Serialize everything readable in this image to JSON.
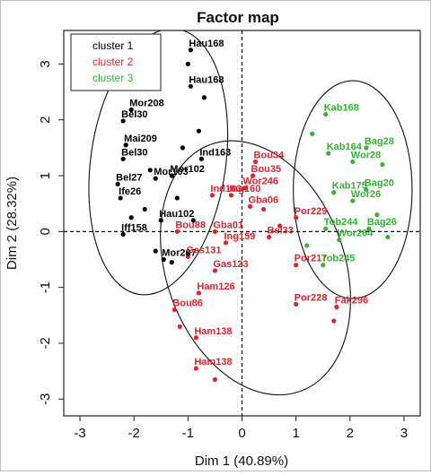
{
  "chart_data": {
    "type": "scatter",
    "title": "Factor map",
    "xlabel": "Dim 1 (40.89%)",
    "ylabel": "Dim 2 (28.32%)",
    "xlim": [
      -3.3,
      3.3
    ],
    "ylim": [
      -3.3,
      3.6
    ],
    "x_ticks": [
      -3,
      -2,
      -1,
      0,
      1,
      2,
      3
    ],
    "y_ticks": [
      -3,
      -2,
      -1,
      0,
      1,
      2,
      3
    ],
    "grid": false,
    "reference_lines": {
      "x": 0,
      "y": 0,
      "style": "dashed"
    },
    "legend": {
      "position": "top-left",
      "entries": [
        "cluster 1",
        "cluster 2",
        "cluster 3"
      ]
    },
    "series": [
      {
        "name": "cluster 1",
        "color": "#000000",
        "points": [
          {
            "x": -0.95,
            "y": 3.25,
            "label": "Hau168"
          },
          {
            "x": -0.95,
            "y": 2.6,
            "label": "Hau168"
          },
          {
            "x": -1.0,
            "y": 3.0
          },
          {
            "x": -0.7,
            "y": 2.4
          },
          {
            "x": -2.05,
            "y": 2.18,
            "label": "Mor208"
          },
          {
            "x": -2.2,
            "y": 1.98,
            "label": "Bel30"
          },
          {
            "x": -2.15,
            "y": 1.55,
            "label": "Mai209"
          },
          {
            "x": -2.2,
            "y": 1.3,
            "label": "Bel30"
          },
          {
            "x": -2.3,
            "y": 0.85,
            "label": "Bel27"
          },
          {
            "x": -2.25,
            "y": 0.6,
            "label": "Ife26"
          },
          {
            "x": -2.2,
            "y": -0.05,
            "label": "Iff158"
          },
          {
            "x": -1.3,
            "y": 1.0,
            "label": "Mor102"
          },
          {
            "x": -1.6,
            "y": 0.95,
            "label": "Mor103"
          },
          {
            "x": -0.75,
            "y": 1.3,
            "label": "Ind163"
          },
          {
            "x": -1.5,
            "y": 0.2,
            "label": "Hau102"
          },
          {
            "x": -1.45,
            "y": -0.5,
            "label": "Mor207"
          },
          {
            "x": -1.3,
            "y": -0.55
          },
          {
            "x": -1.0,
            "y": -0.4
          },
          {
            "x": -1.8,
            "y": 0.4
          },
          {
            "x": -1.2,
            "y": 0.6
          },
          {
            "x": -1.7,
            "y": 1.1
          },
          {
            "x": -0.9,
            "y": 0.2
          },
          {
            "x": -2.05,
            "y": 0.25
          },
          {
            "x": -1.6,
            "y": -0.35
          },
          {
            "x": -0.8,
            "y": 1.8
          },
          {
            "x": -1.1,
            "y": 1.5
          }
        ]
      },
      {
        "name": "cluster 2",
        "color": "#e8202a",
        "points": [
          {
            "x": 0.25,
            "y": 1.25,
            "label": "Bou34"
          },
          {
            "x": 0.2,
            "y": 1.0,
            "label": "Bou35"
          },
          {
            "x": 0.05,
            "y": 0.78,
            "label": "Wor246"
          },
          {
            "x": -0.2,
            "y": 0.65,
            "label": "Ing160"
          },
          {
            "x": 0.15,
            "y": 0.45,
            "label": "Gba06"
          },
          {
            "x": -0.55,
            "y": 0.65,
            "label": "Ind163"
          },
          {
            "x": -1.2,
            "y": 0.0,
            "label": "Bou88"
          },
          {
            "x": -0.5,
            "y": 0.0,
            "label": "Gba01"
          },
          {
            "x": -0.3,
            "y": -0.2,
            "label": "Ing159"
          },
          {
            "x": 0.5,
            "y": -0.1,
            "label": "Bel33"
          },
          {
            "x": 1.0,
            "y": 0.25,
            "label": "Por229"
          },
          {
            "x": 1.0,
            "y": -0.6,
            "label": "Por217"
          },
          {
            "x": -1.0,
            "y": -0.45,
            "label": "Gas131"
          },
          {
            "x": -0.5,
            "y": -0.7,
            "label": "Gas123"
          },
          {
            "x": -0.8,
            "y": -1.1,
            "label": "Ham126"
          },
          {
            "x": -1.25,
            "y": -1.4,
            "label": "Bou86"
          },
          {
            "x": 1.0,
            "y": -1.3,
            "label": "Por228"
          },
          {
            "x": 1.75,
            "y": -1.35,
            "label": "Fak296"
          },
          {
            "x": -0.85,
            "y": -1.9,
            "label": "Ham138"
          },
          {
            "x": -0.85,
            "y": -2.45,
            "label": "Ham138"
          },
          {
            "x": -1.15,
            "y": -1.7
          },
          {
            "x": -0.5,
            "y": -2.65
          },
          {
            "x": 1.7,
            "y": -1.6
          },
          {
            "x": 0.4,
            "y": 0.4
          },
          {
            "x": 0.7,
            "y": 0.1
          }
        ]
      },
      {
        "name": "cluster 3",
        "color": "#33b533",
        "points": [
          {
            "x": 1.55,
            "y": 2.1,
            "label": "Kab168"
          },
          {
            "x": 1.6,
            "y": 1.4,
            "label": "Kab164"
          },
          {
            "x": 2.3,
            "y": 1.5,
            "label": "Bag28"
          },
          {
            "x": 2.05,
            "y": 1.25,
            "label": "Wor28"
          },
          {
            "x": 1.7,
            "y": 0.7,
            "label": "Kab175"
          },
          {
            "x": 2.3,
            "y": 0.75,
            "label": "Bag20"
          },
          {
            "x": 2.05,
            "y": 0.55,
            "label": "Wor26"
          },
          {
            "x": 1.55,
            "y": 0.05,
            "label": "Tob244"
          },
          {
            "x": 2.35,
            "y": 0.05,
            "label": "Bag26"
          },
          {
            "x": 1.8,
            "y": -0.15,
            "label": "Wor264"
          },
          {
            "x": 1.5,
            "y": -0.6,
            "label": "Tob245"
          },
          {
            "x": 2.6,
            "y": 1.2
          },
          {
            "x": 2.5,
            "y": 0.3
          },
          {
            "x": 1.3,
            "y": 1.75
          },
          {
            "x": 2.7,
            "y": -0.1
          },
          {
            "x": 1.2,
            "y": -0.25
          }
        ]
      }
    ],
    "ellipses": [
      {
        "cluster": "cluster 1",
        "cx": -1.55,
        "cy": 1.25,
        "rx": 1.25,
        "ry": 2.4,
        "rotation_deg": 8
      },
      {
        "cluster": "cluster 2",
        "cx": 0.25,
        "cy": -0.65,
        "rx": 1.65,
        "ry": 2.35,
        "rotation_deg": -20
      },
      {
        "cluster": "cluster 3",
        "cx": 2.05,
        "cy": 0.75,
        "rx": 1.1,
        "ry": 1.95,
        "rotation_deg": 0
      }
    ]
  }
}
